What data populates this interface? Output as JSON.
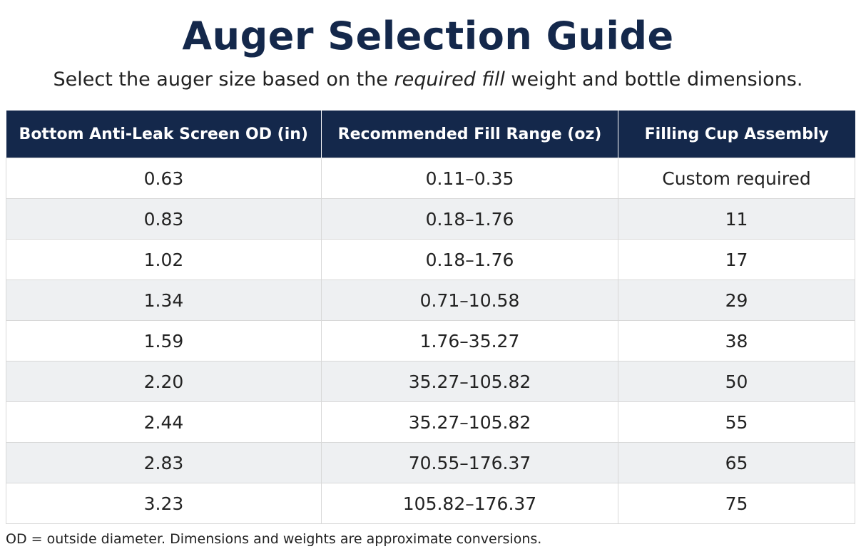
{
  "title": "Auger Selection Guide",
  "subtitle": {
    "before": "Select the auger size based on the ",
    "emphasis": "required fill",
    "after": " weight and bottle dimensions."
  },
  "table": {
    "headers": [
      "Bottom Anti-Leak Screen OD (in)",
      "Recommended Fill Range (oz)",
      "Filling Cup Assembly"
    ],
    "rows": [
      [
        "0.63",
        "0.11–0.35",
        "Custom required"
      ],
      [
        "0.83",
        "0.18–1.76",
        "11"
      ],
      [
        "1.02",
        "0.18–1.76",
        "17"
      ],
      [
        "1.34",
        "0.71–10.58",
        "29"
      ],
      [
        "1.59",
        "1.76–35.27",
        "38"
      ],
      [
        "2.20",
        "35.27–105.82",
        "50"
      ],
      [
        "2.44",
        "35.27–105.82",
        "55"
      ],
      [
        "2.83",
        "70.55–176.37",
        "65"
      ],
      [
        "3.23",
        "105.82–176.37",
        "75"
      ]
    ]
  },
  "footnote": "OD = outside diameter. Dimensions and weights are approximate conversions.",
  "colors": {
    "header_bg": "#14284b",
    "title": "#14284b",
    "alt_row": "#eef0f2"
  }
}
